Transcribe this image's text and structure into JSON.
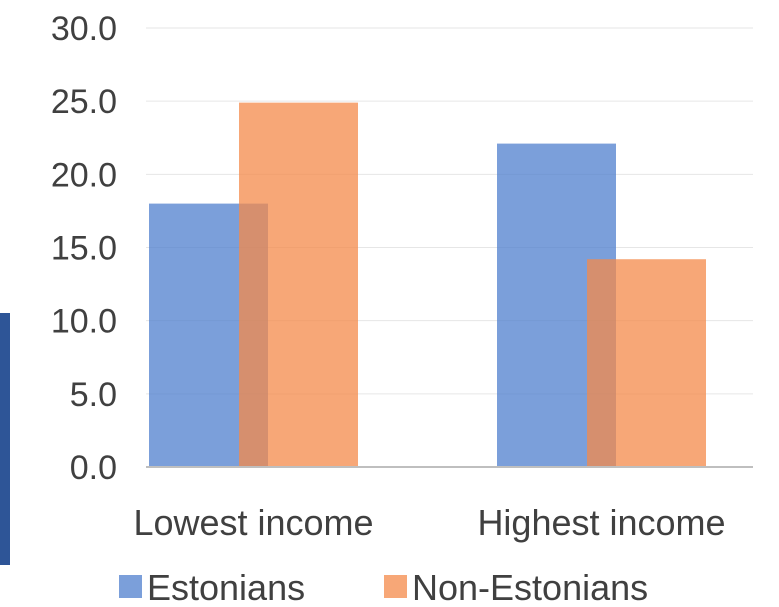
{
  "chart_data": {
    "type": "bar",
    "categories": [
      "Lowest income",
      "Highest income"
    ],
    "series": [
      {
        "name": "Estonians",
        "values": [
          18.0,
          22.1
        ],
        "color": "#4f7fcd"
      },
      {
        "name": "Non-Estonians",
        "values": [
          24.9,
          14.2
        ],
        "color": "#f4894a"
      }
    ],
    "ylim": [
      0,
      30
    ],
    "yticks": [
      "0.0",
      "5.0",
      "10.0",
      "15.0",
      "20.0",
      "25.0",
      "30.0"
    ],
    "grid": true,
    "legend": "bottom",
    "accent_bar_color": "#2e5597"
  }
}
